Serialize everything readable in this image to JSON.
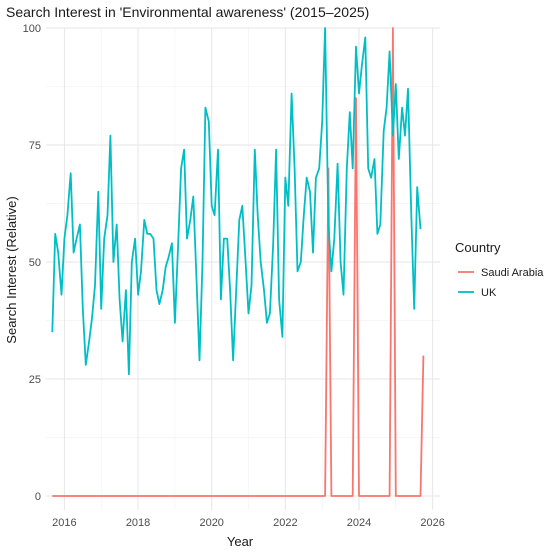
{
  "chart_data": {
    "type": "line",
    "title": "Search Interest in 'Environmental awareness' (2015–2025)",
    "xlabel": "Year",
    "ylabel": "Search Interest (Relative)",
    "x_ticks": [
      "2016",
      "2018",
      "2020",
      "2022",
      "2024",
      "2026"
    ],
    "y_ticks": [
      "0",
      "25",
      "50",
      "75",
      "100"
    ],
    "xlim": [
      2015.5,
      2026.2
    ],
    "ylim": [
      -3,
      100
    ],
    "grid": true,
    "legend": {
      "title": "Country",
      "placement": "right"
    },
    "series": [
      {
        "name": "Saudi Arabia",
        "color": "#F8766D",
        "points": [
          [
            2015.67,
            0
          ],
          [
            2023.08,
            0
          ],
          [
            2023.17,
            70
          ],
          [
            2023.25,
            0
          ],
          [
            2023.83,
            0
          ],
          [
            2023.92,
            85
          ],
          [
            2024.0,
            0
          ],
          [
            2024.83,
            0
          ],
          [
            2024.92,
            100
          ],
          [
            2025.0,
            0
          ],
          [
            2025.67,
            0
          ],
          [
            2025.75,
            30
          ]
        ]
      },
      {
        "name": "UK",
        "color": "#00BFC4",
        "points": [
          [
            2015.67,
            35
          ],
          [
            2015.75,
            56
          ],
          [
            2015.83,
            52
          ],
          [
            2015.92,
            43
          ],
          [
            2016.0,
            55
          ],
          [
            2016.08,
            60
          ],
          [
            2016.17,
            69
          ],
          [
            2016.25,
            52
          ],
          [
            2016.33,
            55
          ],
          [
            2016.42,
            58
          ],
          [
            2016.5,
            40
          ],
          [
            2016.58,
            28
          ],
          [
            2016.67,
            33
          ],
          [
            2016.75,
            38
          ],
          [
            2016.83,
            45
          ],
          [
            2016.92,
            65
          ],
          [
            2017.0,
            40
          ],
          [
            2017.08,
            55
          ],
          [
            2017.17,
            60
          ],
          [
            2017.25,
            77
          ],
          [
            2017.33,
            50
          ],
          [
            2017.42,
            58
          ],
          [
            2017.5,
            42
          ],
          [
            2017.58,
            33
          ],
          [
            2017.67,
            44
          ],
          [
            2017.75,
            26
          ],
          [
            2017.83,
            50
          ],
          [
            2017.92,
            55
          ],
          [
            2018.0,
            43
          ],
          [
            2018.08,
            48
          ],
          [
            2018.17,
            59
          ],
          [
            2018.25,
            56
          ],
          [
            2018.33,
            56
          ],
          [
            2018.42,
            55
          ],
          [
            2018.5,
            44
          ],
          [
            2018.58,
            41
          ],
          [
            2018.67,
            44
          ],
          [
            2018.75,
            49
          ],
          [
            2018.83,
            51
          ],
          [
            2018.92,
            54
          ],
          [
            2019.0,
            37
          ],
          [
            2019.08,
            52
          ],
          [
            2019.17,
            70
          ],
          [
            2019.25,
            74
          ],
          [
            2019.33,
            55
          ],
          [
            2019.42,
            59
          ],
          [
            2019.5,
            64
          ],
          [
            2019.58,
            48
          ],
          [
            2019.67,
            29
          ],
          [
            2019.75,
            50
          ],
          [
            2019.83,
            83
          ],
          [
            2019.92,
            80
          ],
          [
            2020.0,
            62
          ],
          [
            2020.08,
            60
          ],
          [
            2020.17,
            74
          ],
          [
            2020.25,
            42
          ],
          [
            2020.33,
            55
          ],
          [
            2020.42,
            55
          ],
          [
            2020.5,
            44
          ],
          [
            2020.58,
            29
          ],
          [
            2020.67,
            45
          ],
          [
            2020.75,
            59
          ],
          [
            2020.83,
            62
          ],
          [
            2020.92,
            50
          ],
          [
            2021.0,
            39
          ],
          [
            2021.08,
            45
          ],
          [
            2021.17,
            74
          ],
          [
            2021.25,
            60
          ],
          [
            2021.33,
            50
          ],
          [
            2021.42,
            44
          ],
          [
            2021.5,
            37
          ],
          [
            2021.58,
            39
          ],
          [
            2021.67,
            54
          ],
          [
            2021.75,
            74
          ],
          [
            2021.83,
            42
          ],
          [
            2021.92,
            34
          ],
          [
            2022.0,
            68
          ],
          [
            2022.08,
            62
          ],
          [
            2022.17,
            86
          ],
          [
            2022.25,
            70
          ],
          [
            2022.33,
            48
          ],
          [
            2022.42,
            50
          ],
          [
            2022.5,
            60
          ],
          [
            2022.58,
            68
          ],
          [
            2022.67,
            65
          ],
          [
            2022.75,
            52
          ],
          [
            2022.83,
            68
          ],
          [
            2022.92,
            70
          ],
          [
            2023.0,
            80
          ],
          [
            2023.08,
            100
          ],
          [
            2023.17,
            58
          ],
          [
            2023.25,
            48
          ],
          [
            2023.33,
            55
          ],
          [
            2023.42,
            71
          ],
          [
            2023.5,
            50
          ],
          [
            2023.58,
            43
          ],
          [
            2023.67,
            70
          ],
          [
            2023.75,
            82
          ],
          [
            2023.83,
            70
          ],
          [
            2023.92,
            96
          ],
          [
            2024.0,
            86
          ],
          [
            2024.08,
            92
          ],
          [
            2024.17,
            98
          ],
          [
            2024.25,
            70
          ],
          [
            2024.33,
            68
          ],
          [
            2024.42,
            72
          ],
          [
            2024.5,
            56
          ],
          [
            2024.58,
            58
          ],
          [
            2024.67,
            78
          ],
          [
            2024.75,
            83
          ],
          [
            2024.83,
            95
          ],
          [
            2024.92,
            77
          ],
          [
            2025.0,
            88
          ],
          [
            2025.08,
            72
          ],
          [
            2025.17,
            83
          ],
          [
            2025.25,
            77
          ],
          [
            2025.33,
            87
          ],
          [
            2025.42,
            60
          ],
          [
            2025.5,
            40
          ],
          [
            2025.58,
            66
          ],
          [
            2025.67,
            57
          ]
        ]
      }
    ]
  }
}
